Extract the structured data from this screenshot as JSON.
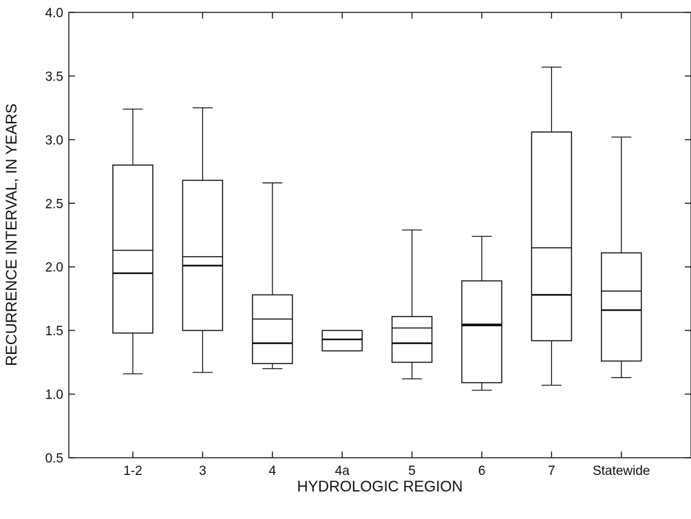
{
  "chart_data": {
    "type": "box",
    "xlabel": "HYDROLOGIC REGION",
    "ylabel": "RECURRENCE INTERVAL, IN YEARS",
    "ylim": [
      0.5,
      4.0
    ],
    "yticks": [
      0.5,
      1.0,
      1.5,
      2.0,
      2.5,
      3.0,
      3.5,
      4.0
    ],
    "ytick_labels": [
      "0.5",
      "1.0",
      "1.5",
      "2.0",
      "2.5",
      "3.0",
      "3.5",
      "4.0"
    ],
    "categories": [
      "1-2",
      "3",
      "4",
      "4a",
      "5",
      "6",
      "7",
      "Statewide"
    ],
    "grid": false,
    "boxes": [
      {
        "category": "1-2",
        "whisker_low": 1.16,
        "q1": 1.48,
        "median": 1.95,
        "mean": 2.13,
        "q3": 2.8,
        "whisker_high": 3.24
      },
      {
        "category": "3",
        "whisker_low": 1.17,
        "q1": 1.5,
        "median": 2.01,
        "mean": 2.08,
        "q3": 2.68,
        "whisker_high": 3.25
      },
      {
        "category": "4",
        "whisker_low": 1.2,
        "q1": 1.24,
        "median": 1.4,
        "mean": 1.59,
        "q3": 1.78,
        "whisker_high": 2.66
      },
      {
        "category": "4a",
        "whisker_low": 1.34,
        "q1": 1.34,
        "median": 1.43,
        "mean": 1.43,
        "q3": 1.5,
        "whisker_high": 1.5
      },
      {
        "category": "5",
        "whisker_low": 1.12,
        "q1": 1.25,
        "median": 1.4,
        "mean": 1.52,
        "q3": 1.61,
        "whisker_high": 2.29
      },
      {
        "category": "6",
        "whisker_low": 1.03,
        "q1": 1.09,
        "median": 1.54,
        "mean": 1.55,
        "q3": 1.89,
        "whisker_high": 2.24
      },
      {
        "category": "7",
        "whisker_low": 1.07,
        "q1": 1.42,
        "median": 1.78,
        "mean": 2.15,
        "q3": 3.06,
        "whisker_high": 3.57
      },
      {
        "category": "Statewide",
        "whisker_low": 1.13,
        "q1": 1.26,
        "median": 1.66,
        "mean": 1.81,
        "q3": 2.11,
        "whisker_high": 3.02
      }
    ]
  }
}
